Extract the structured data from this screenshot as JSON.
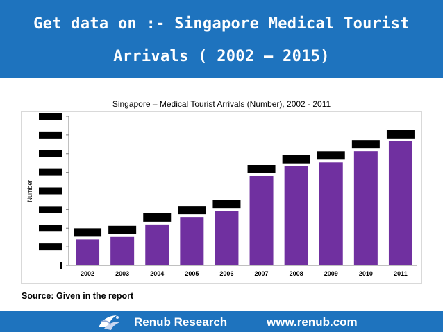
{
  "header": {
    "title_line1": "Get data on :- Singapore Medical Tourist",
    "title_line2": "Arrivals ( 2002 – 2015)",
    "background_color": "#1e73be"
  },
  "chart_data": {
    "type": "bar",
    "title": "Singapore – Medical Tourist Arrivals (Number), 2002 - 2011",
    "xlabel": "",
    "ylabel": "Number",
    "categories": [
      "2002",
      "2003",
      "2004",
      "2005",
      "2006",
      "2007",
      "2008",
      "2009",
      "2010",
      "2011"
    ],
    "values": [
      0.21,
      0.23,
      0.33,
      0.39,
      0.44,
      0.72,
      0.8,
      0.83,
      0.92,
      1.0
    ],
    "value_scale": "fraction of the tallest bar; numeric values and y tick labels are redacted in the original",
    "ylim": [
      0,
      1.2
    ],
    "y_tick_count": 9,
    "bar_color": "#7030a0",
    "redaction_color": "#000000",
    "grid": false,
    "legend": "none"
  },
  "source_text": "Source: Given in the report",
  "footer": {
    "company": "Renub Research",
    "url": "www.renub.com",
    "logo_icon": "bird-logo-icon"
  }
}
